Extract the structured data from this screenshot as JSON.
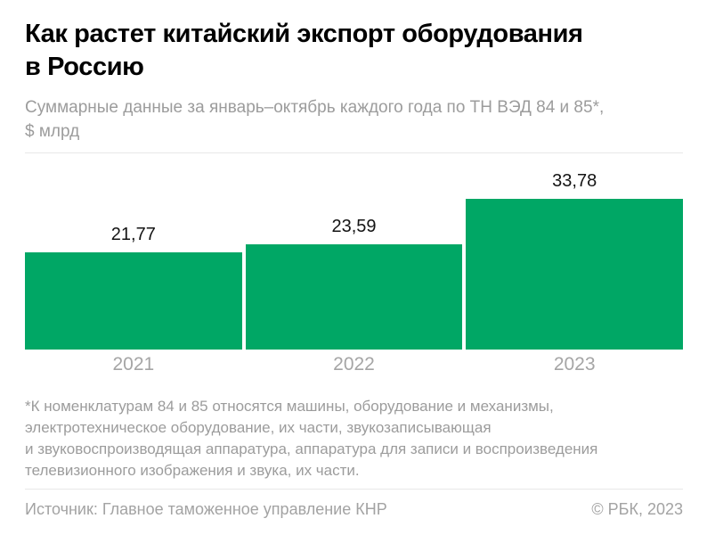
{
  "header": {
    "title_lines": [
      "Как растет китайский экспорт оборудования",
      "в Россию"
    ],
    "subtitle_lines": [
      "Суммарные данные за январь–октябрь каждого года по ТН ВЭД 84 и 85*,",
      "$ млрд"
    ]
  },
  "chart_data": {
    "type": "bar",
    "title": "Как растет китайский экспорт оборудования в Россию",
    "subtitle": "Суммарные данные за январь–октябрь каждого года по ТН ВЭД 84 и 85*, $ млрд",
    "categories": [
      "2021",
      "2022",
      "2023"
    ],
    "values": [
      21.77,
      23.59,
      33.78
    ],
    "value_labels": [
      "21,77",
      "23,59",
      "33,78"
    ],
    "xlabel": "",
    "ylabel": "$ млрд",
    "ylim": [
      0,
      44
    ],
    "grid": false,
    "legend": "none",
    "bar_color": "#00A765",
    "tick_label_color": "#A5A5A5",
    "value_label_color": "#141414"
  },
  "footnote": {
    "lines": [
      "*К номенклатурам 84 и 85 относятся машины, оборудование и механизмы,",
      "электротехническое оборудование, их части, звукозаписывающая",
      "и звуковоспроизводящая аппаратура, аппаратура для записи и воспроизведения",
      "телевизионного изображения и звука, их части."
    ]
  },
  "footer": {
    "source": "Источник: Главное таможенное управление КНР",
    "copyright": "© РБК, 2023"
  },
  "colors": {
    "bar_green": "#00A765",
    "title_black": "#000000",
    "muted_gray": "#9C9C9C",
    "axis_gray": "#A5A5A5",
    "divider_gray": "#E8E8E8"
  }
}
